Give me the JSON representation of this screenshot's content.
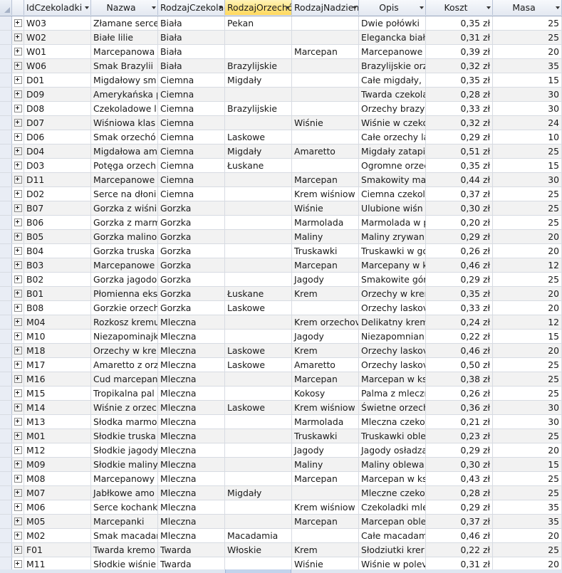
{
  "table": {
    "columns": [
      "IdCzekoladki",
      "Nazwa",
      "RodzajCzekolady",
      "RodzajOrzechów",
      "RodzajNadzienia",
      "Opis",
      "Koszt",
      "Masa"
    ],
    "active_column": "RodzajOrzechów",
    "rows": [
      [
        "W03",
        "Złamane serce",
        "Biała",
        "Pekan",
        "",
        "Dwie połówki",
        "0,35 zł",
        "25"
      ],
      [
        "W02",
        "Białe lilie",
        "Biała",
        "",
        "",
        "Elegancka biała",
        "0,31 zł",
        "25"
      ],
      [
        "W01",
        "Marcepanowa",
        "Biała",
        "",
        "Marcepan",
        "Marcepanowe",
        "0,39 zł",
        "20"
      ],
      [
        "W06",
        "Smak Brazylii",
        "Biała",
        "Brazylijskie",
        "",
        "Brazylijskie orz",
        "0,32 zł",
        "35"
      ],
      [
        "D01",
        "Migdałowy sm",
        "Ciemna",
        "Migdały",
        "",
        "Całe migdały, r",
        "0,35 zł",
        "15"
      ],
      [
        "D09",
        "Amerykańska p",
        "Ciemna",
        "",
        "",
        "Twarda czekola",
        "0,28 zł",
        "30"
      ],
      [
        "D08",
        "Czekoladowe l",
        "Ciemna",
        "Brazylijskie",
        "",
        "Orzechy brazyl",
        "0,33 zł",
        "30"
      ],
      [
        "D07",
        "Wiśniowa klas",
        "Ciemna",
        "",
        "Wiśnie",
        "Wiśnie w czeko",
        "0,32 zł",
        "24"
      ],
      [
        "D06",
        "Smak orzechó",
        "Ciemna",
        "Laskowe",
        "",
        "Całe orzechy la",
        "0,29 zł",
        "10"
      ],
      [
        "D04",
        "Migdałowa am",
        "Ciemna",
        "Migdały",
        "Amaretto",
        "Migdały zatapi",
        "0,51 zł",
        "25"
      ],
      [
        "D03",
        "Potęga orzech",
        "Ciemna",
        "Łuskane",
        "",
        "Ogromne orzec",
        "0,35 zł",
        "15"
      ],
      [
        "D11",
        "Marcepanowe",
        "Ciemna",
        "",
        "Marcepan",
        "Smakowity ma",
        "0,44 zł",
        "30"
      ],
      [
        "D02",
        "Serce na dłoni",
        "Ciemna",
        "",
        "Krem wiśniow",
        "Ciemna czekol",
        "0,37 zł",
        "25"
      ],
      [
        "B07",
        "Gorzka z wiśni",
        "Gorzka",
        "",
        "Wiśnie",
        "Ulubione wiśn",
        "0,30 zł",
        "25"
      ],
      [
        "B06",
        "Gorzka z marm",
        "Gorzka",
        "",
        "Marmolada",
        "Marmolada w p",
        "0,20 zł",
        "25"
      ],
      [
        "B05",
        "Gorzka malino",
        "Gorzka",
        "",
        "Maliny",
        "Maliny zrywan",
        "0,29 zł",
        "20"
      ],
      [
        "B04",
        "Gorzka truska",
        "Gorzka",
        "",
        "Truskawki",
        "Truskawki w go",
        "0,26 zł",
        "20"
      ],
      [
        "B03",
        "Marcepanowe",
        "Gorzka",
        "",
        "Marcepan",
        "Marcepany w k",
        "0,46 zł",
        "12"
      ],
      [
        "B02",
        "Gorzka jagodo",
        "Gorzka",
        "",
        "Jagody",
        "Smakowite gór",
        "0,29 zł",
        "25"
      ],
      [
        "B01",
        "Płomienna eks",
        "Gorzka",
        "Łuskane",
        "Krem",
        "Orzechy w krer",
        "0,35 zł",
        "20"
      ],
      [
        "B08",
        "Gorzkie orzech",
        "Gorzka",
        "Laskowe",
        "",
        "Orzechy laskov",
        "0,33 zł",
        "20"
      ],
      [
        "M04",
        "Rozkosz kremu",
        "Mleczna",
        "",
        "Krem orzechov",
        "Delikatny krem",
        "0,24 zł",
        "12"
      ],
      [
        "M10",
        "Niezapominajk",
        "Mleczna",
        "",
        "Jagody",
        "Niezapomnian",
        "0,22 zł",
        "15"
      ],
      [
        "M18",
        "Orzechy w kre",
        "Mleczna",
        "Laskowe",
        "Krem",
        "Orzechy laskov",
        "0,46 zł",
        "20"
      ],
      [
        "M17",
        "Amaretto z orz",
        "Mleczna",
        "Laskowe",
        "Amaretto",
        "Orzechy laskov",
        "0,50 zł",
        "25"
      ],
      [
        "M16",
        "Cud marcepan",
        "Mleczna",
        "",
        "Marcepan",
        "Marcepan w ks",
        "0,38 zł",
        "25"
      ],
      [
        "M15",
        "Tropikalna pal",
        "Mleczna",
        "",
        "Kokosy",
        "Palma z mleczn",
        "0,26 zł",
        "25"
      ],
      [
        "M14",
        "Wiśnie z orzec",
        "Mleczna",
        "Laskowe",
        "Krem wiśniow",
        "Świetne orzech",
        "0,36 zł",
        "30"
      ],
      [
        "M13",
        "Słodka marmo",
        "Mleczna",
        "",
        "Marmolada",
        "Mleczna czeko",
        "0,21 zł",
        "30"
      ],
      [
        "M01",
        "Słodkie truska",
        "Mleczna",
        "",
        "Truskawki",
        "Truskawki oble",
        "0,23 zł",
        "25"
      ],
      [
        "M12",
        "Słodkie jagody",
        "Mleczna",
        "",
        "Jagody",
        "Jagody osładza",
        "0,29 zł",
        "20"
      ],
      [
        "M09",
        "Słodkie maliny",
        "Mleczna",
        "",
        "Maliny",
        "Maliny oblewa",
        "0,30 zł",
        "15"
      ],
      [
        "M08",
        "Marcepanowy",
        "Mleczna",
        "",
        "Marcepan",
        "Marcepan w ks",
        "0,43 zł",
        "25"
      ],
      [
        "M07",
        "Jabłkowe amo",
        "Mleczna",
        "Migdały",
        "",
        "Mleczne czeko",
        "0,28 zł",
        "25"
      ],
      [
        "M06",
        "Serce kochank",
        "Mleczna",
        "",
        "Krem wiśniow",
        "Czekoladki mle",
        "0,29 zł",
        "35"
      ],
      [
        "M05",
        "Marcepanki",
        "Mleczna",
        "",
        "Marcepan",
        "Marcepan oble",
        "0,37 zł",
        "35"
      ],
      [
        "M02",
        "Smak macadan",
        "Mleczna",
        "Macadamia",
        "",
        "Całe macadam",
        "0,46 zł",
        "20"
      ],
      [
        "F01",
        "Twarda kremo",
        "Twarda",
        "Włoskie",
        "Krem",
        "Słodziutki krer",
        "0,22 zł",
        "25"
      ],
      [
        "M11",
        "Słodkie wiśnie",
        "Twarda",
        "",
        "Wiśnie",
        "Wiśnie w polev",
        "0,31 zł",
        "20"
      ]
    ]
  }
}
